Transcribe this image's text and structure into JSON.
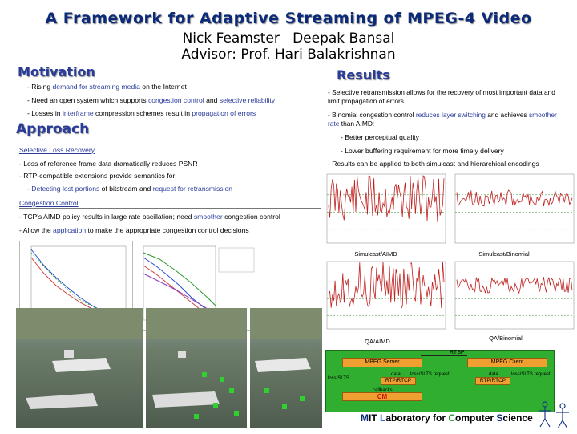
{
  "title": "A Framework for Adaptive Streaming of MPEG-4 Video",
  "authors": "Nick Feamster   Deepak Bansal",
  "advisor": "Advisor: Prof. Hari Balakrishnan",
  "motivation": {
    "heading": "Motivation",
    "b1": {
      "a": "- Rising ",
      "h": "demand for streaming media",
      "b": " on the Internet"
    },
    "b2": {
      "a": "- Need an open system which supports ",
      "h1": "congestion control",
      "m": " and ",
      "h2": "selective reliability"
    },
    "b3": {
      "a": "- Losses in ",
      "h": "interframe",
      "m": " compression schemes result in ",
      "h2": "propagation of errors"
    }
  },
  "approach": {
    "heading": "Approach",
    "slr_label": "Selective Loss Recovery",
    "slr1": "- Loss of reference frame data dramatically reduces PSNR",
    "slr2": "- RTP-compatible extensions provide semantics for:",
    "slr3": {
      "a": "- ",
      "h1": "Detecting lost portions",
      "m": " of bitstream and ",
      "h2": "request for retransmission"
    },
    "cc_label": "Congestion Control",
    "cc1": {
      "a": "- TCP's AIMD policy results in large rate oscillation; need ",
      "h": "smoother",
      "b": " congestion control"
    },
    "cc2": {
      "a": "- Allow the ",
      "h": "application",
      "b": " to make the appropriate congestion control decisions"
    }
  },
  "results": {
    "heading": "Results",
    "r1": "- Selective retransmission allows for the recovery of most important data and limit propagation of errors.",
    "r2": {
      "a": "- Binomial congestion control ",
      "h1": "reduces layer switching",
      "m": " and achieves ",
      "h2": "smoother rate",
      "b": " than AIMD:"
    },
    "r3": "- Better perceptual quality",
    "r4": "- Lower buffering requirement for more timely delivery",
    "r5": "- Results can be applied to both simulcast and hierarchical encodings"
  },
  "plots": {
    "simulcast_aimd": "Simulcast/AIMD",
    "simulcast_binomial": "Simulcast/Binomial",
    "qa_aimd": "QA/AIMD",
    "qa_binomial": "QA/Binomial"
  },
  "diagram": {
    "rtsp": "RTSP",
    "server": "MPEG Server",
    "client": "MPEG Client",
    "loss_left": "loss/SLTS",
    "data_left": "data",
    "loss_req_left": "loss/SLTS request",
    "rtp_left": "RTP/RTCP",
    "data_right": "data",
    "loss_req_right": "loss/SLTS request",
    "rtp_right": "RTP/RTCP",
    "callbacks": "callbacks",
    "cm": "CM"
  },
  "footer": {
    "m": "M",
    "it": "IT ",
    "l": "L",
    "aboratory": "aboratory for ",
    "c": "C",
    "omputer": "omputer ",
    "s": "S",
    "cience": "cience"
  },
  "colors": {
    "title": "#0b2a7a",
    "heading": "#2a3c9a",
    "highlight": "#2a3c9a",
    "diagram_fill": "#2fae2f",
    "diagram_box": "#f0a030",
    "cm_text": "#cc1010"
  }
}
